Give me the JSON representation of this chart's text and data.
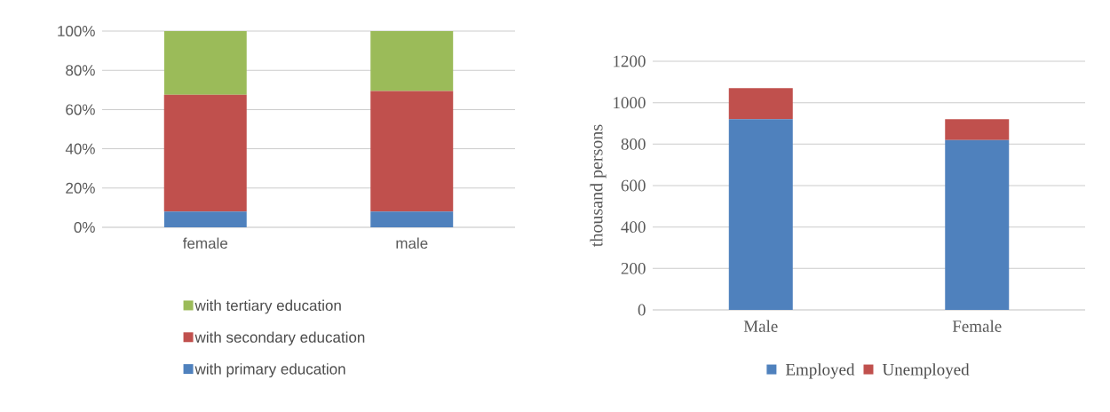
{
  "chart_data": [
    {
      "type": "bar",
      "stacked": true,
      "categories": [
        "female",
        "male"
      ],
      "series": [
        {
          "name": "with primary education",
          "color": "#4f81bd",
          "values": [
            8,
            8
          ]
        },
        {
          "name": "with secondary education",
          "color": "#c0504d",
          "values": [
            59.5,
            61.5
          ]
        },
        {
          "name": "with tertiary education",
          "color": "#9bbb59",
          "values": [
            32.5,
            30.5
          ]
        }
      ],
      "ylim": [
        0,
        100
      ],
      "yticks": [
        {
          "value": 0,
          "label": "0%"
        },
        {
          "value": 20,
          "label": "20%"
        },
        {
          "value": 40,
          "label": "40%"
        },
        {
          "value": 60,
          "label": "60%"
        },
        {
          "value": 80,
          "label": "80%"
        },
        {
          "value": 100,
          "label": "100%"
        }
      ],
      "grid": "y",
      "legend": "bottom"
    },
    {
      "type": "bar",
      "stacked": true,
      "categories": [
        "Male",
        "Female"
      ],
      "ylabel": "thousand persons",
      "series": [
        {
          "name": "Employed",
          "color": "#4f81bd",
          "values": [
            920,
            820
          ]
        },
        {
          "name": "Unemployed",
          "color": "#c0504d",
          "values": [
            150,
            100
          ]
        }
      ],
      "ylim": [
        0,
        1200
      ],
      "yticks": [
        0,
        200,
        400,
        600,
        800,
        1000,
        1200
      ],
      "grid": "y",
      "legend": "bottom"
    }
  ]
}
